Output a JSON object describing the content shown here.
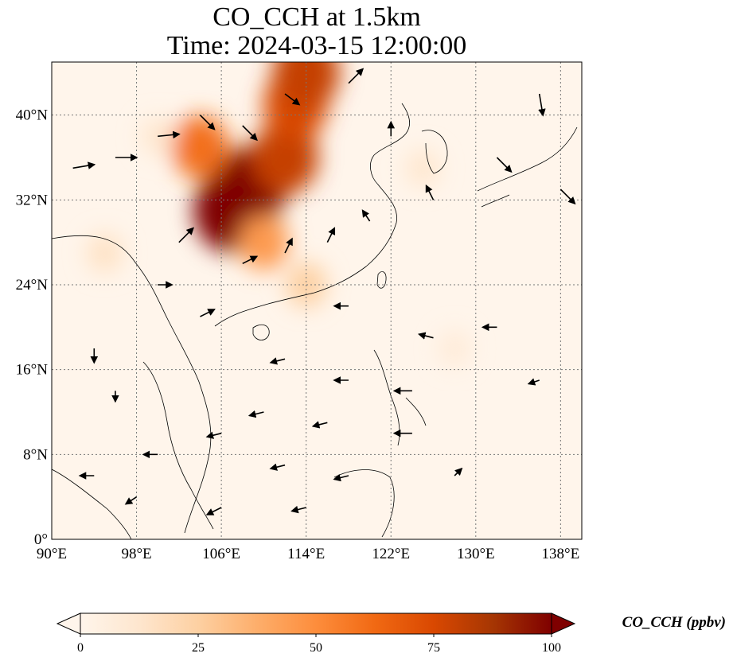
{
  "title": {
    "line1": "CO_CCH at 1.5km",
    "line2": "Time: 2024-03-15 12:00:00"
  },
  "map": {
    "lon_range": [
      90,
      140
    ],
    "lat_range": [
      0,
      45
    ],
    "lon_ticks": [
      {
        "value": 90,
        "label": "90°E"
      },
      {
        "value": 98,
        "label": "98°E"
      },
      {
        "value": 106,
        "label": "106°E"
      },
      {
        "value": 114,
        "label": "114°E"
      },
      {
        "value": 122,
        "label": "122°E"
      },
      {
        "value": 130,
        "label": "130°E"
      },
      {
        "value": 138,
        "label": "138°E"
      }
    ],
    "lat_ticks": [
      {
        "value": 0,
        "label": "0°"
      },
      {
        "value": 8,
        "label": "8°N"
      },
      {
        "value": 16,
        "label": "16°N"
      },
      {
        "value": 24,
        "label": "24°N"
      },
      {
        "value": 32,
        "label": "32°N"
      },
      {
        "value": 40,
        "label": "40°N"
      }
    ],
    "gridlines": true,
    "background_color": "#fff5eb",
    "high_color": "#7f0000",
    "plume_regions": [
      {
        "lon": 107,
        "lat": 31,
        "value": 100
      },
      {
        "lon": 108.5,
        "lat": 33,
        "value": 100
      },
      {
        "lon": 112,
        "lat": 36,
        "value": 80
      },
      {
        "lon": 113,
        "lat": 41,
        "value": 75
      },
      {
        "lon": 114,
        "lat": 44,
        "value": 80
      },
      {
        "lon": 104,
        "lat": 37,
        "value": 60
      },
      {
        "lon": 110,
        "lat": 28,
        "value": 45
      },
      {
        "lon": 114,
        "lat": 24,
        "value": 25
      },
      {
        "lon": 95,
        "lat": 27,
        "value": 15
      },
      {
        "lon": 100,
        "lat": 38,
        "value": 12
      },
      {
        "lon": 125,
        "lat": 35,
        "value": 12
      },
      {
        "lon": 128,
        "lat": 18,
        "value": 8
      }
    ],
    "wind_vectors": [
      {
        "lon": 92,
        "lat": 35,
        "u": 3,
        "v": 0.5
      },
      {
        "lon": 96,
        "lat": 36,
        "u": 3,
        "v": 0
      },
      {
        "lon": 100,
        "lat": 38,
        "u": 3,
        "v": 0.3
      },
      {
        "lon": 104,
        "lat": 40,
        "u": 2,
        "v": -2
      },
      {
        "lon": 108,
        "lat": 39,
        "u": 2,
        "v": -2
      },
      {
        "lon": 112,
        "lat": 42,
        "u": 2,
        "v": -1.5
      },
      {
        "lon": 118,
        "lat": 43,
        "u": 2,
        "v": 2
      },
      {
        "lon": 122,
        "lat": 38,
        "u": 0,
        "v": 2
      },
      {
        "lon": 126,
        "lat": 32,
        "u": -1,
        "v": 2
      },
      {
        "lon": 132,
        "lat": 36,
        "u": 2,
        "v": -2
      },
      {
        "lon": 136,
        "lat": 42,
        "u": 0.5,
        "v": -3
      },
      {
        "lon": 138,
        "lat": 33,
        "u": 2,
        "v": -2
      },
      {
        "lon": 102,
        "lat": 28,
        "u": 2,
        "v": 2
      },
      {
        "lon": 108,
        "lat": 26,
        "u": 2,
        "v": 1
      },
      {
        "lon": 112,
        "lat": 27,
        "u": 1,
        "v": 2
      },
      {
        "lon": 116,
        "lat": 28,
        "u": 1,
        "v": 2
      },
      {
        "lon": 120,
        "lat": 30,
        "u": -1,
        "v": 1.5
      },
      {
        "lon": 100,
        "lat": 24,
        "u": 2,
        "v": 0
      },
      {
        "lon": 104,
        "lat": 21,
        "u": 2,
        "v": 1
      },
      {
        "lon": 118,
        "lat": 22,
        "u": -2,
        "v": 0
      },
      {
        "lon": 126,
        "lat": 19,
        "u": -2,
        "v": 0.5
      },
      {
        "lon": 132,
        "lat": 20,
        "u": -2,
        "v": 0
      },
      {
        "lon": 136,
        "lat": 15,
        "u": -1.5,
        "v": -0.5
      },
      {
        "lon": 112,
        "lat": 17,
        "u": -2,
        "v": -0.5
      },
      {
        "lon": 118,
        "lat": 15,
        "u": -2,
        "v": 0
      },
      {
        "lon": 124,
        "lat": 14,
        "u": -2.5,
        "v": 0
      },
      {
        "lon": 110,
        "lat": 12,
        "u": -2,
        "v": -0.5
      },
      {
        "lon": 116,
        "lat": 11,
        "u": -2,
        "v": -0.5
      },
      {
        "lon": 124,
        "lat": 10,
        "u": -2.5,
        "v": 0
      },
      {
        "lon": 106,
        "lat": 10,
        "u": -2,
        "v": -0.5
      },
      {
        "lon": 100,
        "lat": 8,
        "u": -2,
        "v": 0
      },
      {
        "lon": 112,
        "lat": 7,
        "u": -2,
        "v": -0.5
      },
      {
        "lon": 118,
        "lat": 6,
        "u": -2,
        "v": -0.5
      },
      {
        "lon": 94,
        "lat": 6,
        "u": -2,
        "v": 0
      },
      {
        "lon": 98,
        "lat": 4,
        "u": -1.5,
        "v": -1
      },
      {
        "lon": 106,
        "lat": 3,
        "u": -2,
        "v": -1
      },
      {
        "lon": 114,
        "lat": 3,
        "u": -2,
        "v": -0.5
      },
      {
        "lon": 94,
        "lat": 18,
        "u": 0,
        "v": -2
      },
      {
        "lon": 96,
        "lat": 14,
        "u": 0,
        "v": -1.5
      },
      {
        "lon": 128,
        "lat": 6,
        "u": 1,
        "v": 1
      }
    ]
  },
  "colorbar": {
    "label": "CO_CCH (ppbv)",
    "range": [
      0,
      100
    ],
    "extend": "both",
    "colormap": [
      "#fff5eb",
      "#fee6ce",
      "#fdd0a2",
      "#fdae6b",
      "#fd8d3c",
      "#f16913",
      "#d94801",
      "#a63603",
      "#7f0000"
    ],
    "ticks": [
      {
        "value": 0,
        "label": "0"
      },
      {
        "value": 25,
        "label": "25"
      },
      {
        "value": 50,
        "label": "50"
      },
      {
        "value": 75,
        "label": "75"
      },
      {
        "value": 100,
        "label": "100"
      }
    ]
  }
}
